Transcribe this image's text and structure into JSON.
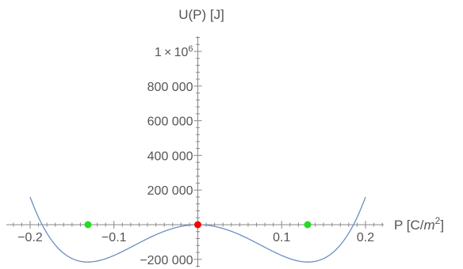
{
  "chart_data": {
    "type": "line",
    "title": "",
    "xlabel_base": "P [C/",
    "xlabel_unit_var": "m",
    "xlabel_unit_exp": "2",
    "xlabel_tail": "]",
    "ylabel": "U(P) [J]",
    "xlim": [
      -0.225,
      0.225
    ],
    "ylim": [
      -250000,
      1100000
    ],
    "x_ticks": [
      {
        "value": -0.2,
        "label": "−0.2"
      },
      {
        "value": -0.1,
        "label": "−0.1"
      },
      {
        "value": 0.1,
        "label": "0.1"
      },
      {
        "value": 0.2,
        "label": "0.2"
      }
    ],
    "y_ticks": [
      {
        "value": -200000,
        "label": "−200 000"
      },
      {
        "value": 200000,
        "label": "200 000"
      },
      {
        "value": 400000,
        "label": "400 000"
      },
      {
        "value": 600000,
        "label": "600 000"
      },
      {
        "value": 800000,
        "label": "800 000"
      }
    ],
    "y_top_tick": {
      "value": 1000000,
      "base": "1 × 10",
      "exp": "6"
    },
    "series": [
      {
        "function": "U(P) = a*P^2 + b*P^4",
        "a": -25000000,
        "b": 725000000,
        "x_range": [
          -0.2,
          0.2
        ],
        "color": "#6a8fc1"
      }
    ],
    "points": [
      {
        "x": 0,
        "y": 0,
        "color": "#ff0000"
      },
      {
        "x": -0.131,
        "y": 0,
        "color": "#22dd22"
      },
      {
        "x": 0.131,
        "y": 0,
        "color": "#22dd22"
      }
    ]
  }
}
